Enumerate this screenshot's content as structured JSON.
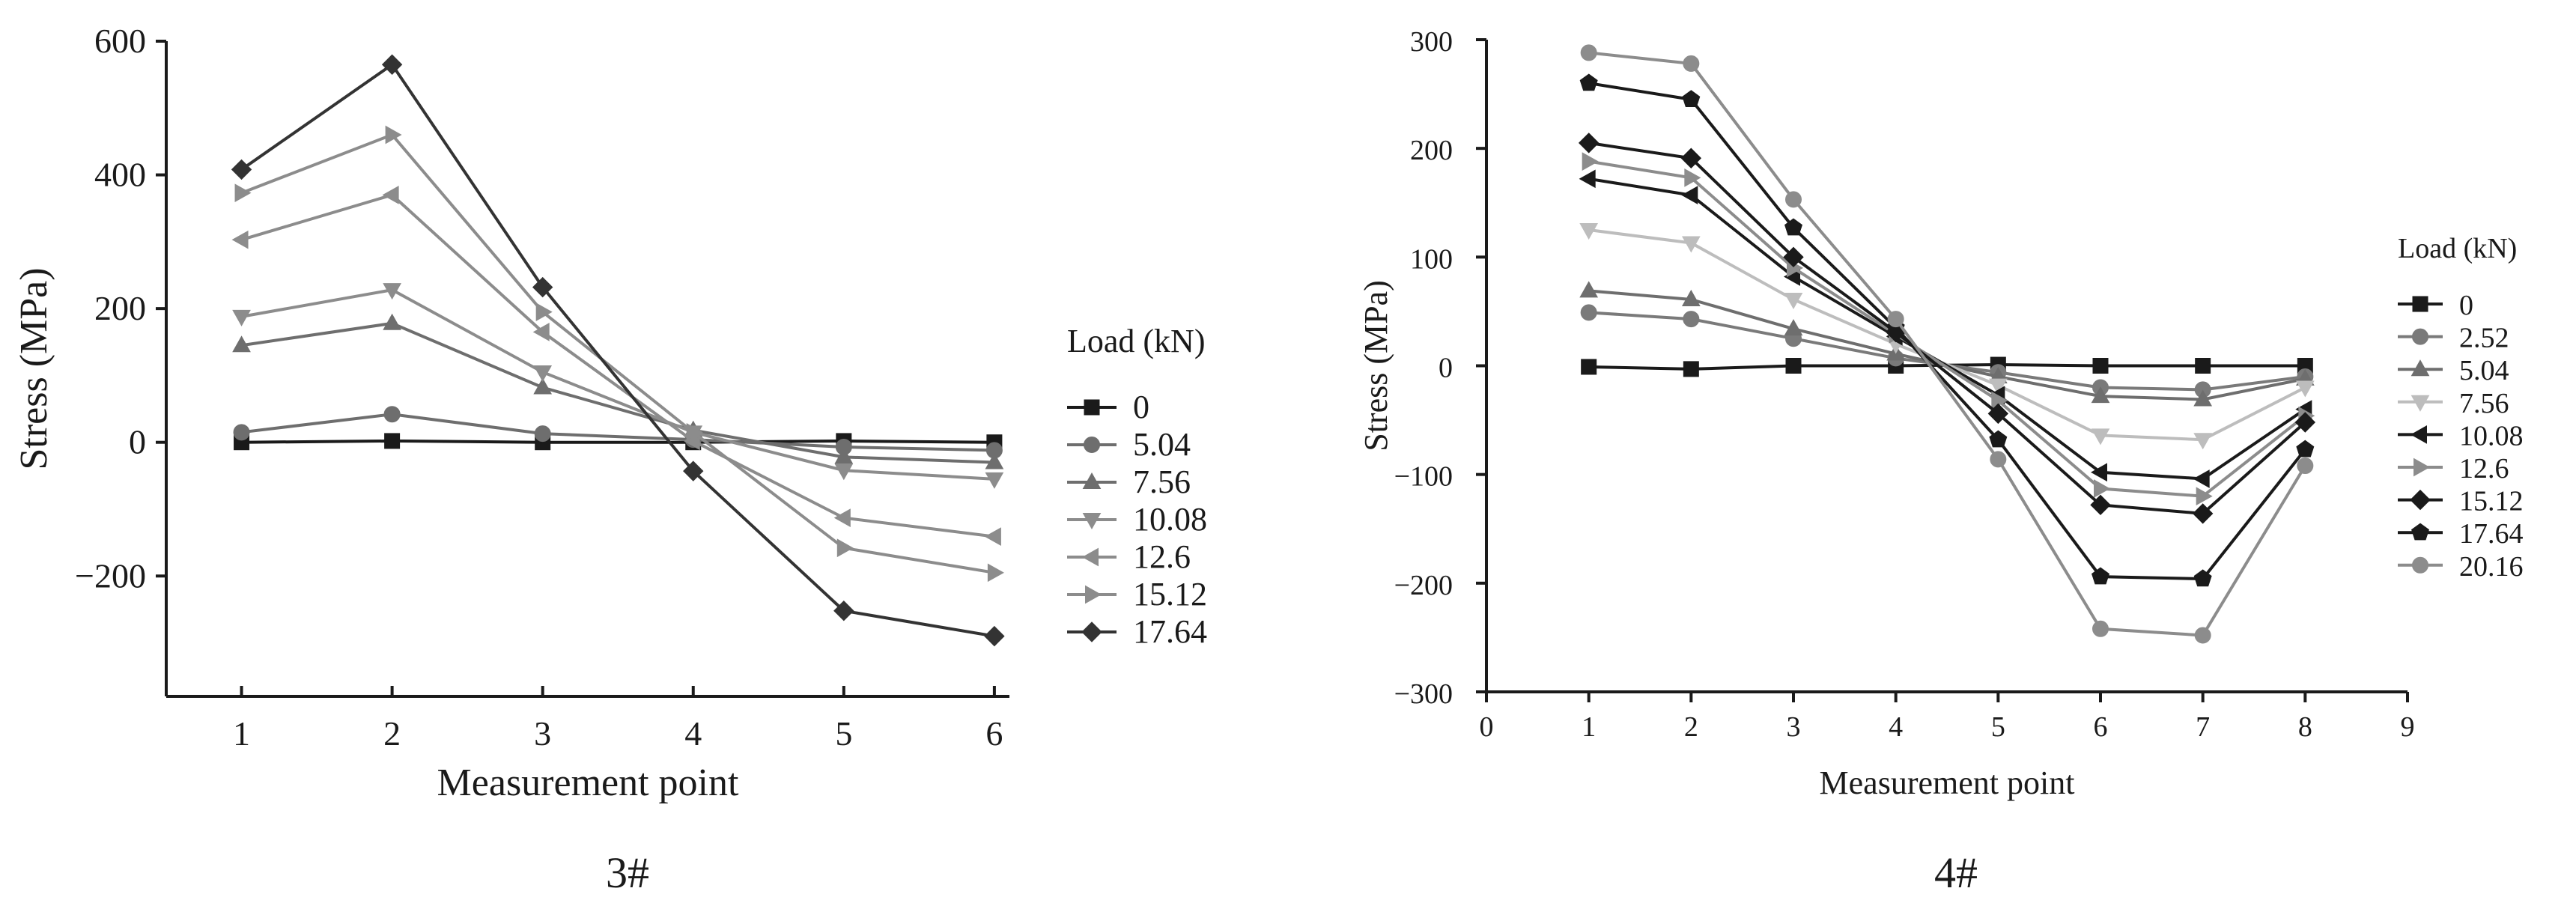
{
  "chart_data": [
    {
      "type": "line",
      "caption": "3#",
      "xlabel": "Measurement point",
      "ylabel": "Stress (MPa)",
      "xlim": [
        0.5,
        6.1
      ],
      "ylim": [
        -380,
        600
      ],
      "xticks": [
        1,
        2,
        3,
        4,
        5,
        6
      ],
      "yticks": [
        -200,
        0,
        200,
        400,
        600
      ],
      "ytick_labels": [
        "−200",
        "0",
        "200",
        "400",
        "600"
      ],
      "legend_title": "Load (kN)",
      "legend_position": "right",
      "x": [
        1,
        2,
        3,
        4,
        5,
        6
      ],
      "series": [
        {
          "name": "0",
          "marker": "square",
          "color": "#1a1a1a",
          "values": [
            0,
            2,
            0,
            0,
            2,
            0
          ]
        },
        {
          "name": "5.04",
          "marker": "circle",
          "color": "#6e6e6e",
          "values": [
            15,
            42,
            13,
            4,
            -7,
            -12
          ]
        },
        {
          "name": "7.56",
          "marker": "triangle-up",
          "color": "#6e6e6e",
          "values": [
            145,
            178,
            82,
            18,
            -22,
            -30
          ]
        },
        {
          "name": "10.08",
          "marker": "triangle-down",
          "color": "#8c8c8c",
          "values": [
            188,
            228,
            105,
            15,
            -42,
            -55
          ]
        },
        {
          "name": "12.6",
          "marker": "triangle-left",
          "color": "#8c8c8c",
          "values": [
            303,
            370,
            165,
            2,
            -113,
            -141
          ]
        },
        {
          "name": "15.12",
          "marker": "triangle-right",
          "color": "#8c8c8c",
          "values": [
            373,
            460,
            195,
            15,
            -158,
            -195
          ]
        },
        {
          "name": "17.64",
          "marker": "diamond",
          "color": "#333333",
          "values": [
            408,
            565,
            232,
            -43,
            -252,
            -290
          ]
        }
      ]
    },
    {
      "type": "line",
      "caption": "4#",
      "xlabel": "Measurement point",
      "ylabel": "Stress (MPa)",
      "xlim": [
        0,
        9
      ],
      "ylim": [
        -300,
        300
      ],
      "xticks": [
        0,
        1,
        2,
        3,
        4,
        5,
        6,
        7,
        8,
        9
      ],
      "yticks": [
        -300,
        -200,
        -100,
        0,
        100,
        200,
        300
      ],
      "ytick_labels": [
        "−300",
        "−200",
        "−100",
        "0",
        "100",
        "200",
        "300"
      ],
      "legend_title": "Load (kN)",
      "legend_position": "right",
      "x": [
        1,
        2,
        3,
        4,
        5,
        6,
        7,
        8
      ],
      "series": [
        {
          "name": "0",
          "marker": "square",
          "color": "#1a1a1a",
          "values": [
            -1,
            -3,
            0,
            0,
            1,
            0,
            0,
            0
          ]
        },
        {
          "name": "2.52",
          "marker": "circle",
          "color": "#7a7a7a",
          "values": [
            49,
            43,
            25,
            7,
            -6,
            -20,
            -22,
            -10
          ]
        },
        {
          "name": "5.04",
          "marker": "triangle-up",
          "color": "#6e6e6e",
          "values": [
            69,
            61,
            34,
            11,
            -10,
            -28,
            -31,
            -12
          ]
        },
        {
          "name": "7.56",
          "marker": "triangle-down",
          "color": "#bdbdbd",
          "values": [
            125,
            113,
            61,
            20,
            -18,
            -64,
            -68,
            -20
          ]
        },
        {
          "name": "10.08",
          "marker": "triangle-left",
          "color": "#1a1a1a",
          "values": [
            172,
            157,
            82,
            27,
            -27,
            -98,
            -104,
            -40
          ]
        },
        {
          "name": "12.6",
          "marker": "triangle-right",
          "color": "#8c8c8c",
          "values": [
            188,
            173,
            90,
            29,
            -32,
            -113,
            -120,
            -46
          ]
        },
        {
          "name": "15.12",
          "marker": "diamond",
          "color": "#1a1a1a",
          "values": [
            205,
            191,
            100,
            31,
            -44,
            -128,
            -136,
            -52
          ]
        },
        {
          "name": "17.64",
          "marker": "pentagon",
          "color": "#1a1a1a",
          "values": [
            260,
            245,
            127,
            35,
            -68,
            -194,
            -196,
            -77
          ]
        },
        {
          "name": "20.16",
          "marker": "circle",
          "color": "#8c8c8c",
          "values": [
            288,
            278,
            153,
            43,
            -86,
            -242,
            -248,
            -92
          ]
        }
      ]
    }
  ]
}
